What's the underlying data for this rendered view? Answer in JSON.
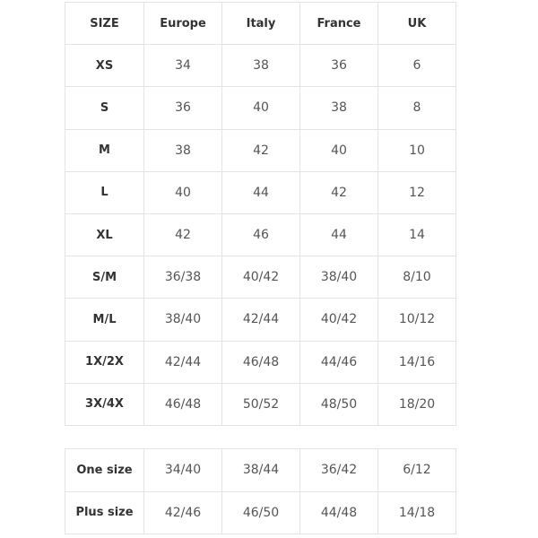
{
  "main_table": {
    "headers": [
      "SIZE",
      "Europe",
      "Italy",
      "France",
      "UK"
    ],
    "rows": [
      [
        "XS",
        "34",
        "38",
        "36",
        "6"
      ],
      [
        "S",
        "36",
        "40",
        "38",
        "8"
      ],
      [
        "M",
        "38",
        "42",
        "40",
        "10"
      ],
      [
        "L",
        "40",
        "44",
        "42",
        "12"
      ],
      [
        "XL",
        "42",
        "46",
        "44",
        "14"
      ],
      [
        "S/M",
        "36/38",
        "40/42",
        "38/40",
        "8/10"
      ],
      [
        "M/L",
        "38/40",
        "42/44",
        "40/42",
        "10/12"
      ],
      [
        "1X/2X",
        "42/44",
        "46/48",
        "44/46",
        "14/16"
      ],
      [
        "3X/4X",
        "46/48",
        "50/52",
        "48/50",
        "18/20"
      ]
    ]
  },
  "special_table": {
    "rows": [
      [
        "One size",
        "34/40",
        "38/44",
        "36/42",
        "6/12"
      ],
      [
        "Plus size",
        "42/46",
        "46/50",
        "44/48",
        "14/18"
      ]
    ]
  }
}
